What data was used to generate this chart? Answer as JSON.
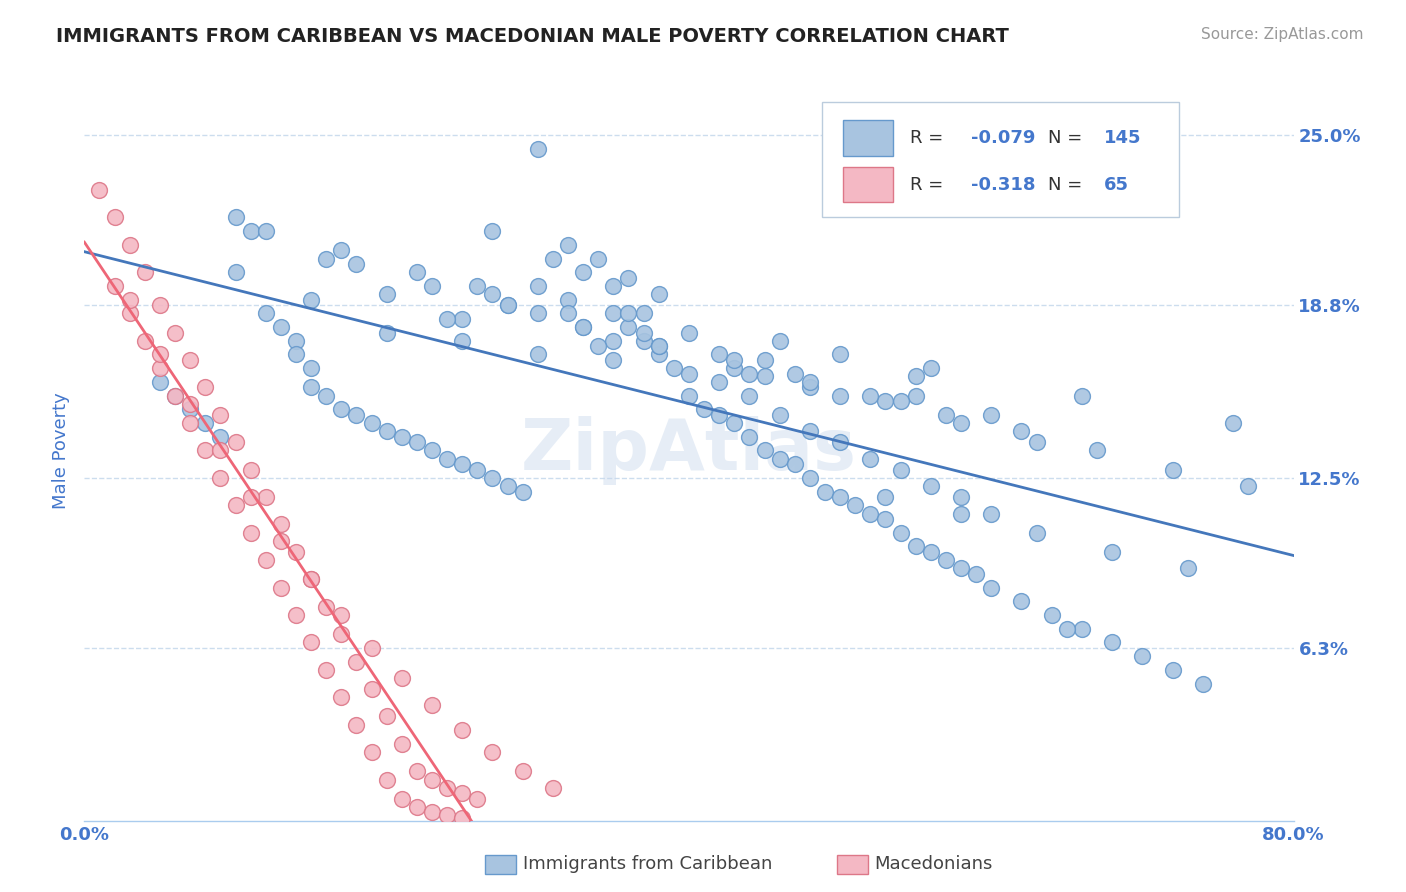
{
  "title": "IMMIGRANTS FROM CARIBBEAN VS MACEDONIAN MALE POVERTY CORRELATION CHART",
  "source": "Source: ZipAtlas.com",
  "ylabel": "Male Poverty",
  "xlim": [
    0.0,
    0.8
  ],
  "ylim": [
    0.0,
    0.27
  ],
  "color_blue": "#a8c4e0",
  "color_blue_edge": "#6699cc",
  "color_blue_line": "#4477bb",
  "color_pink": "#f4b8c4",
  "color_pink_edge": "#dd7788",
  "color_pink_line": "#ee6677",
  "color_text_blue": "#4477cc",
  "blue_scatter_x": [
    0.27,
    0.3,
    0.31,
    0.32,
    0.33,
    0.35,
    0.35,
    0.36,
    0.37,
    0.37,
    0.38,
    0.39,
    0.1,
    0.11,
    0.12,
    0.13,
    0.14,
    0.14,
    0.15,
    0.15,
    0.16,
    0.17,
    0.18,
    0.19,
    0.2,
    0.21,
    0.22,
    0.23,
    0.24,
    0.25,
    0.26,
    0.27,
    0.28,
    0.29,
    0.4,
    0.41,
    0.42,
    0.43,
    0.44,
    0.45,
    0.46,
    0.47,
    0.48,
    0.49,
    0.5,
    0.51,
    0.52,
    0.53,
    0.54,
    0.55,
    0.56,
    0.57,
    0.58,
    0.59,
    0.6,
    0.62,
    0.64,
    0.66,
    0.68,
    0.7,
    0.72,
    0.74,
    0.05,
    0.06,
    0.07,
    0.08,
    0.09,
    0.3,
    0.32,
    0.34,
    0.36,
    0.38,
    0.42,
    0.44,
    0.46,
    0.48,
    0.5,
    0.52,
    0.54,
    0.56,
    0.58,
    0.6,
    0.25,
    0.35,
    0.45,
    0.55,
    0.65,
    0.15,
    0.25,
    0.35,
    0.45,
    0.55,
    0.2,
    0.3,
    0.4,
    0.5,
    0.6,
    0.1,
    0.2,
    0.3,
    0.4,
    0.5,
    0.28,
    0.33,
    0.38,
    0.43,
    0.48,
    0.53,
    0.58,
    0.63,
    0.68,
    0.73,
    0.18,
    0.23,
    0.28,
    0.33,
    0.38,
    0.43,
    0.48,
    0.53,
    0.58,
    0.63,
    0.12,
    0.17,
    0.22,
    0.27,
    0.32,
    0.37,
    0.42,
    0.47,
    0.52,
    0.57,
    0.62,
    0.67,
    0.72,
    0.77,
    0.16,
    0.26,
    0.36,
    0.46,
    0.56,
    0.66,
    0.76,
    0.24,
    0.34,
    0.44,
    0.54
  ],
  "blue_scatter_y": [
    0.215,
    0.195,
    0.205,
    0.19,
    0.2,
    0.185,
    0.195,
    0.18,
    0.185,
    0.175,
    0.17,
    0.165,
    0.22,
    0.215,
    0.185,
    0.18,
    0.175,
    0.17,
    0.165,
    0.158,
    0.155,
    0.15,
    0.148,
    0.145,
    0.142,
    0.14,
    0.138,
    0.135,
    0.132,
    0.13,
    0.128,
    0.125,
    0.122,
    0.12,
    0.155,
    0.15,
    0.148,
    0.145,
    0.14,
    0.135,
    0.132,
    0.13,
    0.125,
    0.12,
    0.118,
    0.115,
    0.112,
    0.11,
    0.105,
    0.1,
    0.098,
    0.095,
    0.092,
    0.09,
    0.085,
    0.08,
    0.075,
    0.07,
    0.065,
    0.06,
    0.055,
    0.05,
    0.16,
    0.155,
    0.15,
    0.145,
    0.14,
    0.245,
    0.21,
    0.205,
    0.198,
    0.192,
    0.16,
    0.155,
    0.148,
    0.142,
    0.138,
    0.132,
    0.128,
    0.122,
    0.118,
    0.112,
    0.175,
    0.168,
    0.162,
    0.155,
    0.07,
    0.19,
    0.183,
    0.175,
    0.168,
    0.162,
    0.178,
    0.17,
    0.163,
    0.155,
    0.148,
    0.2,
    0.192,
    0.185,
    0.178,
    0.17,
    0.188,
    0.18,
    0.173,
    0.165,
    0.158,
    0.118,
    0.112,
    0.105,
    0.098,
    0.092,
    0.203,
    0.195,
    0.188,
    0.18,
    0.173,
    0.168,
    0.16,
    0.153,
    0.145,
    0.138,
    0.215,
    0.208,
    0.2,
    0.192,
    0.185,
    0.178,
    0.17,
    0.163,
    0.155,
    0.148,
    0.142,
    0.135,
    0.128,
    0.122,
    0.205,
    0.195,
    0.185,
    0.175,
    0.165,
    0.155,
    0.145,
    0.183,
    0.173,
    0.163,
    0.153
  ],
  "pink_scatter_x": [
    0.01,
    0.02,
    0.02,
    0.03,
    0.03,
    0.04,
    0.04,
    0.05,
    0.05,
    0.06,
    0.06,
    0.07,
    0.07,
    0.08,
    0.08,
    0.09,
    0.09,
    0.1,
    0.1,
    0.11,
    0.11,
    0.12,
    0.12,
    0.13,
    0.13,
    0.14,
    0.14,
    0.15,
    0.15,
    0.16,
    0.16,
    0.17,
    0.17,
    0.18,
    0.18,
    0.19,
    0.19,
    0.2,
    0.2,
    0.21,
    0.21,
    0.22,
    0.22,
    0.23,
    0.23,
    0.24,
    0.24,
    0.25,
    0.25,
    0.26,
    0.03,
    0.05,
    0.07,
    0.09,
    0.11,
    0.13,
    0.15,
    0.17,
    0.19,
    0.21,
    0.23,
    0.25,
    0.27,
    0.29,
    0.31
  ],
  "pink_scatter_y": [
    0.23,
    0.22,
    0.195,
    0.21,
    0.185,
    0.2,
    0.175,
    0.188,
    0.165,
    0.178,
    0.155,
    0.168,
    0.145,
    0.158,
    0.135,
    0.148,
    0.125,
    0.138,
    0.115,
    0.128,
    0.105,
    0.118,
    0.095,
    0.108,
    0.085,
    0.098,
    0.075,
    0.088,
    0.065,
    0.078,
    0.055,
    0.068,
    0.045,
    0.058,
    0.035,
    0.048,
    0.025,
    0.038,
    0.015,
    0.028,
    0.008,
    0.018,
    0.005,
    0.015,
    0.003,
    0.012,
    0.002,
    0.01,
    0.001,
    0.008,
    0.19,
    0.17,
    0.152,
    0.135,
    0.118,
    0.102,
    0.088,
    0.075,
    0.063,
    0.052,
    0.042,
    0.033,
    0.025,
    0.018,
    0.012
  ]
}
